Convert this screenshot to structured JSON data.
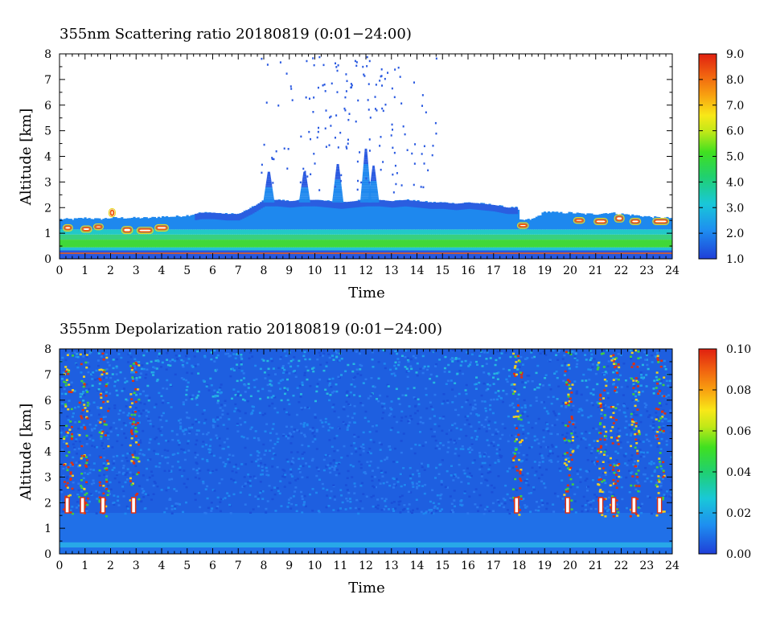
{
  "chart_data": [
    {
      "type": "heatmap",
      "title": "355nm Scattering ratio  20180819 (0:01−24:00)",
      "xlabel": "Time",
      "ylabel": "Altitude [km]",
      "xlim": [
        0,
        24
      ],
      "ylim": [
        0,
        8
      ],
      "x_ticks": [
        "0",
        "1",
        "2",
        "3",
        "4",
        "5",
        "6",
        "7",
        "8",
        "9",
        "10",
        "11",
        "12",
        "13",
        "14",
        "15",
        "16",
        "17",
        "18",
        "19",
        "20",
        "21",
        "22",
        "23",
        "24"
      ],
      "y_ticks": [
        "0",
        "1",
        "2",
        "3",
        "4",
        "5",
        "6",
        "7",
        "8"
      ],
      "colorbar": {
        "min": 1.0,
        "max": 9.0,
        "ticks": [
          "1.0",
          "2.0",
          "3.0",
          "4.0",
          "5.0",
          "6.0",
          "7.0",
          "8.0",
          "9.0"
        ]
      },
      "boundary_layer_top_km": [
        [
          0,
          1.55
        ],
        [
          0.5,
          1.55
        ],
        [
          1,
          1.6
        ],
        [
          1.5,
          1.55
        ],
        [
          2,
          1.6
        ],
        [
          2.5,
          1.6
        ],
        [
          3,
          1.6
        ],
        [
          3.5,
          1.6
        ],
        [
          4,
          1.65
        ],
        [
          4.5,
          1.65
        ],
        [
          5,
          1.7
        ],
        [
          5.5,
          1.8
        ],
        [
          6,
          1.8
        ],
        [
          6.5,
          1.75
        ],
        [
          7,
          1.75
        ],
        [
          7.5,
          2.0
        ],
        [
          8,
          2.3
        ],
        [
          8.5,
          2.3
        ],
        [
          9,
          2.25
        ],
        [
          9.5,
          2.3
        ],
        [
          10,
          2.3
        ],
        [
          10.5,
          2.25
        ],
        [
          11,
          2.2
        ],
        [
          11.5,
          2.25
        ],
        [
          12,
          2.3
        ],
        [
          12.5,
          2.3
        ],
        [
          13,
          2.25
        ],
        [
          13.5,
          2.3
        ],
        [
          14,
          2.25
        ],
        [
          14.5,
          2.2
        ],
        [
          15,
          2.2
        ],
        [
          15.5,
          2.15
        ],
        [
          16,
          2.2
        ],
        [
          16.5,
          2.15
        ],
        [
          17,
          2.1
        ],
        [
          17.5,
          2.0
        ],
        [
          17.9,
          2.0
        ],
        [
          18,
          1.5
        ],
        [
          18.5,
          1.55
        ],
        [
          19,
          1.85
        ],
        [
          19.5,
          1.8
        ],
        [
          20,
          1.8
        ],
        [
          20.5,
          1.75
        ],
        [
          21,
          1.75
        ],
        [
          21.5,
          1.8
        ],
        [
          22,
          1.75
        ],
        [
          22.5,
          1.7
        ],
        [
          23,
          1.65
        ],
        [
          23.5,
          1.6
        ],
        [
          24,
          1.6
        ]
      ]
    },
    {
      "type": "heatmap",
      "title": "355nm Depolarization ratio  20180819 (0:01−24:00)",
      "xlabel": "Time",
      "ylabel": "Altitude [km]",
      "xlim": [
        0,
        24
      ],
      "ylim": [
        0,
        8
      ],
      "x_ticks": [
        "0",
        "1",
        "2",
        "3",
        "4",
        "5",
        "6",
        "7",
        "8",
        "9",
        "10",
        "11",
        "12",
        "13",
        "14",
        "15",
        "16",
        "17",
        "18",
        "19",
        "20",
        "21",
        "22",
        "23",
        "24"
      ],
      "y_ticks": [
        "0",
        "1",
        "2",
        "3",
        "4",
        "5",
        "6",
        "7",
        "8"
      ],
      "colorbar": {
        "min": 0.0,
        "max": 0.1,
        "ticks": [
          "0.00",
          "0.02",
          "0.04",
          "0.06",
          "0.08",
          "0.10"
        ]
      },
      "cloud_columns_h": [
        0.3,
        0.9,
        1.7,
        2.9,
        17.9,
        19.9,
        21.2,
        21.7,
        22.5,
        23.5
      ]
    }
  ]
}
